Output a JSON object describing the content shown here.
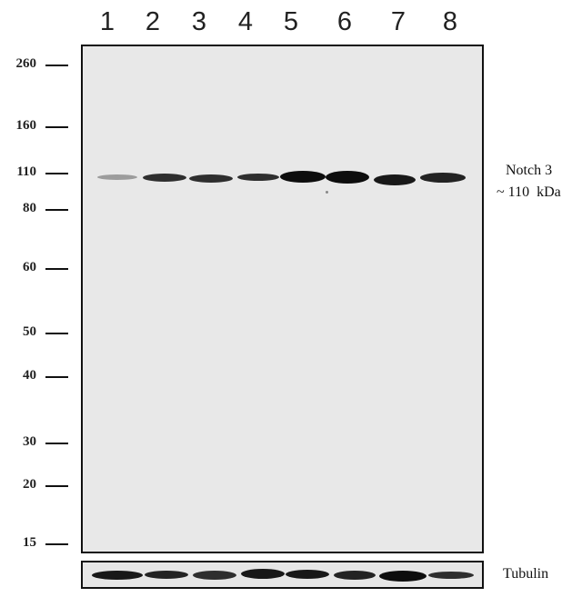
{
  "lanes": [
    "1",
    "2",
    "3",
    "4",
    "5",
    "6",
    "7",
    "8"
  ],
  "markers": [
    "260",
    "160",
    "110",
    "80",
    "60",
    "50",
    "40",
    "30",
    "20",
    "15"
  ],
  "target": {
    "name": "Notch 3",
    "size": "~ 110  kDa"
  },
  "loading_control": "Tubulin",
  "band_intensity": {
    "notch3": [
      0.35,
      0.85,
      0.85,
      0.85,
      1.0,
      1.0,
      0.95,
      0.9
    ],
    "tubulin": [
      0.95,
      0.9,
      0.85,
      0.95,
      0.95,
      0.9,
      1.0,
      0.85
    ]
  },
  "colors": {
    "blot_background": "#e8e8e8",
    "band": "#0d0d0d",
    "frame": "#111111"
  }
}
